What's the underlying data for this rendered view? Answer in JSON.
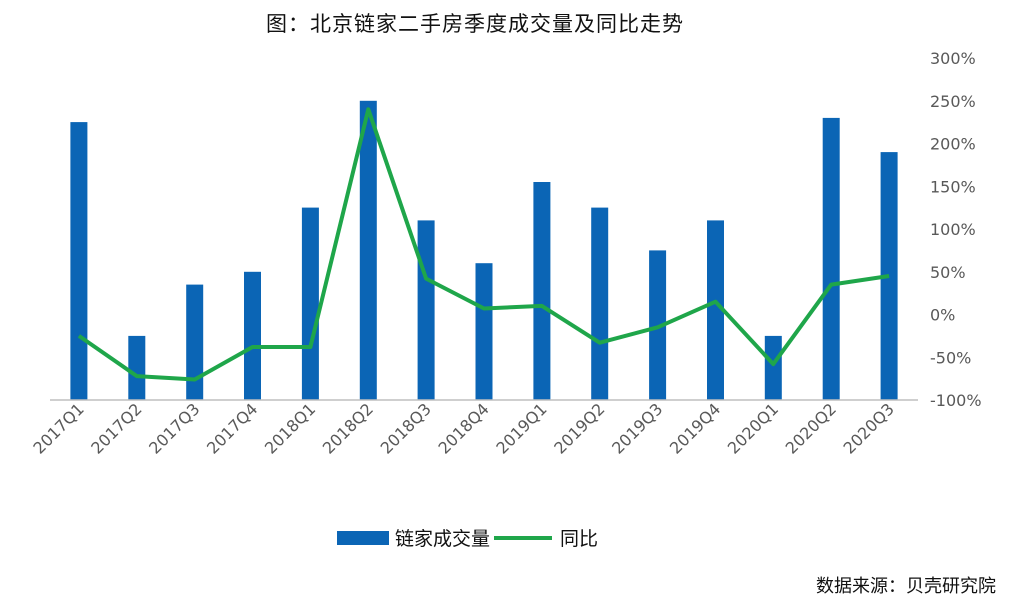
{
  "title": "图：北京链家二手房季度成交量及同比走势",
  "source": "数据来源：贝壳研究院",
  "colors": {
    "bar": "#0b65b5",
    "line": "#1fa64a",
    "axis": "#bfbfbf",
    "text": "#595959"
  },
  "chart_data": {
    "type": "bar+line",
    "categories": [
      "2017Q1",
      "2017Q2",
      "2017Q3",
      "2017Q4",
      "2018Q1",
      "2018Q2",
      "2018Q3",
      "2018Q4",
      "2019Q1",
      "2019Q2",
      "2019Q3",
      "2019Q4",
      "2020Q1",
      "2020Q2",
      "2020Q3"
    ],
    "series": [
      {
        "name": "链家成交量",
        "type": "bar",
        "axis": "left",
        "values": [
          6.5,
          1.5,
          2.7,
          3.0,
          4.5,
          7.0,
          4.2,
          3.2,
          5.1,
          4.5,
          3.5,
          4.2,
          1.5,
          6.6,
          5.8
        ]
      },
      {
        "name": "同比",
        "type": "line",
        "axis": "right",
        "values": [
          -25,
          -72,
          -76,
          -38,
          -38,
          240,
          42,
          7,
          10,
          -33,
          -15,
          15,
          -58,
          35,
          45
        ]
      }
    ],
    "left_ylim": [
      0,
      8
    ],
    "right_ylim": [
      -100,
      300
    ],
    "right_ticks": [
      300,
      250,
      200,
      150,
      100,
      50,
      0,
      -50,
      -100
    ],
    "right_tick_labels": [
      "300%",
      "250%",
      "200%",
      "150%",
      "100%",
      "50%",
      "0%",
      "-50%",
      "-100%"
    ],
    "legend": {
      "position": "bottom",
      "entries": [
        "链家成交量",
        "同比"
      ]
    }
  }
}
